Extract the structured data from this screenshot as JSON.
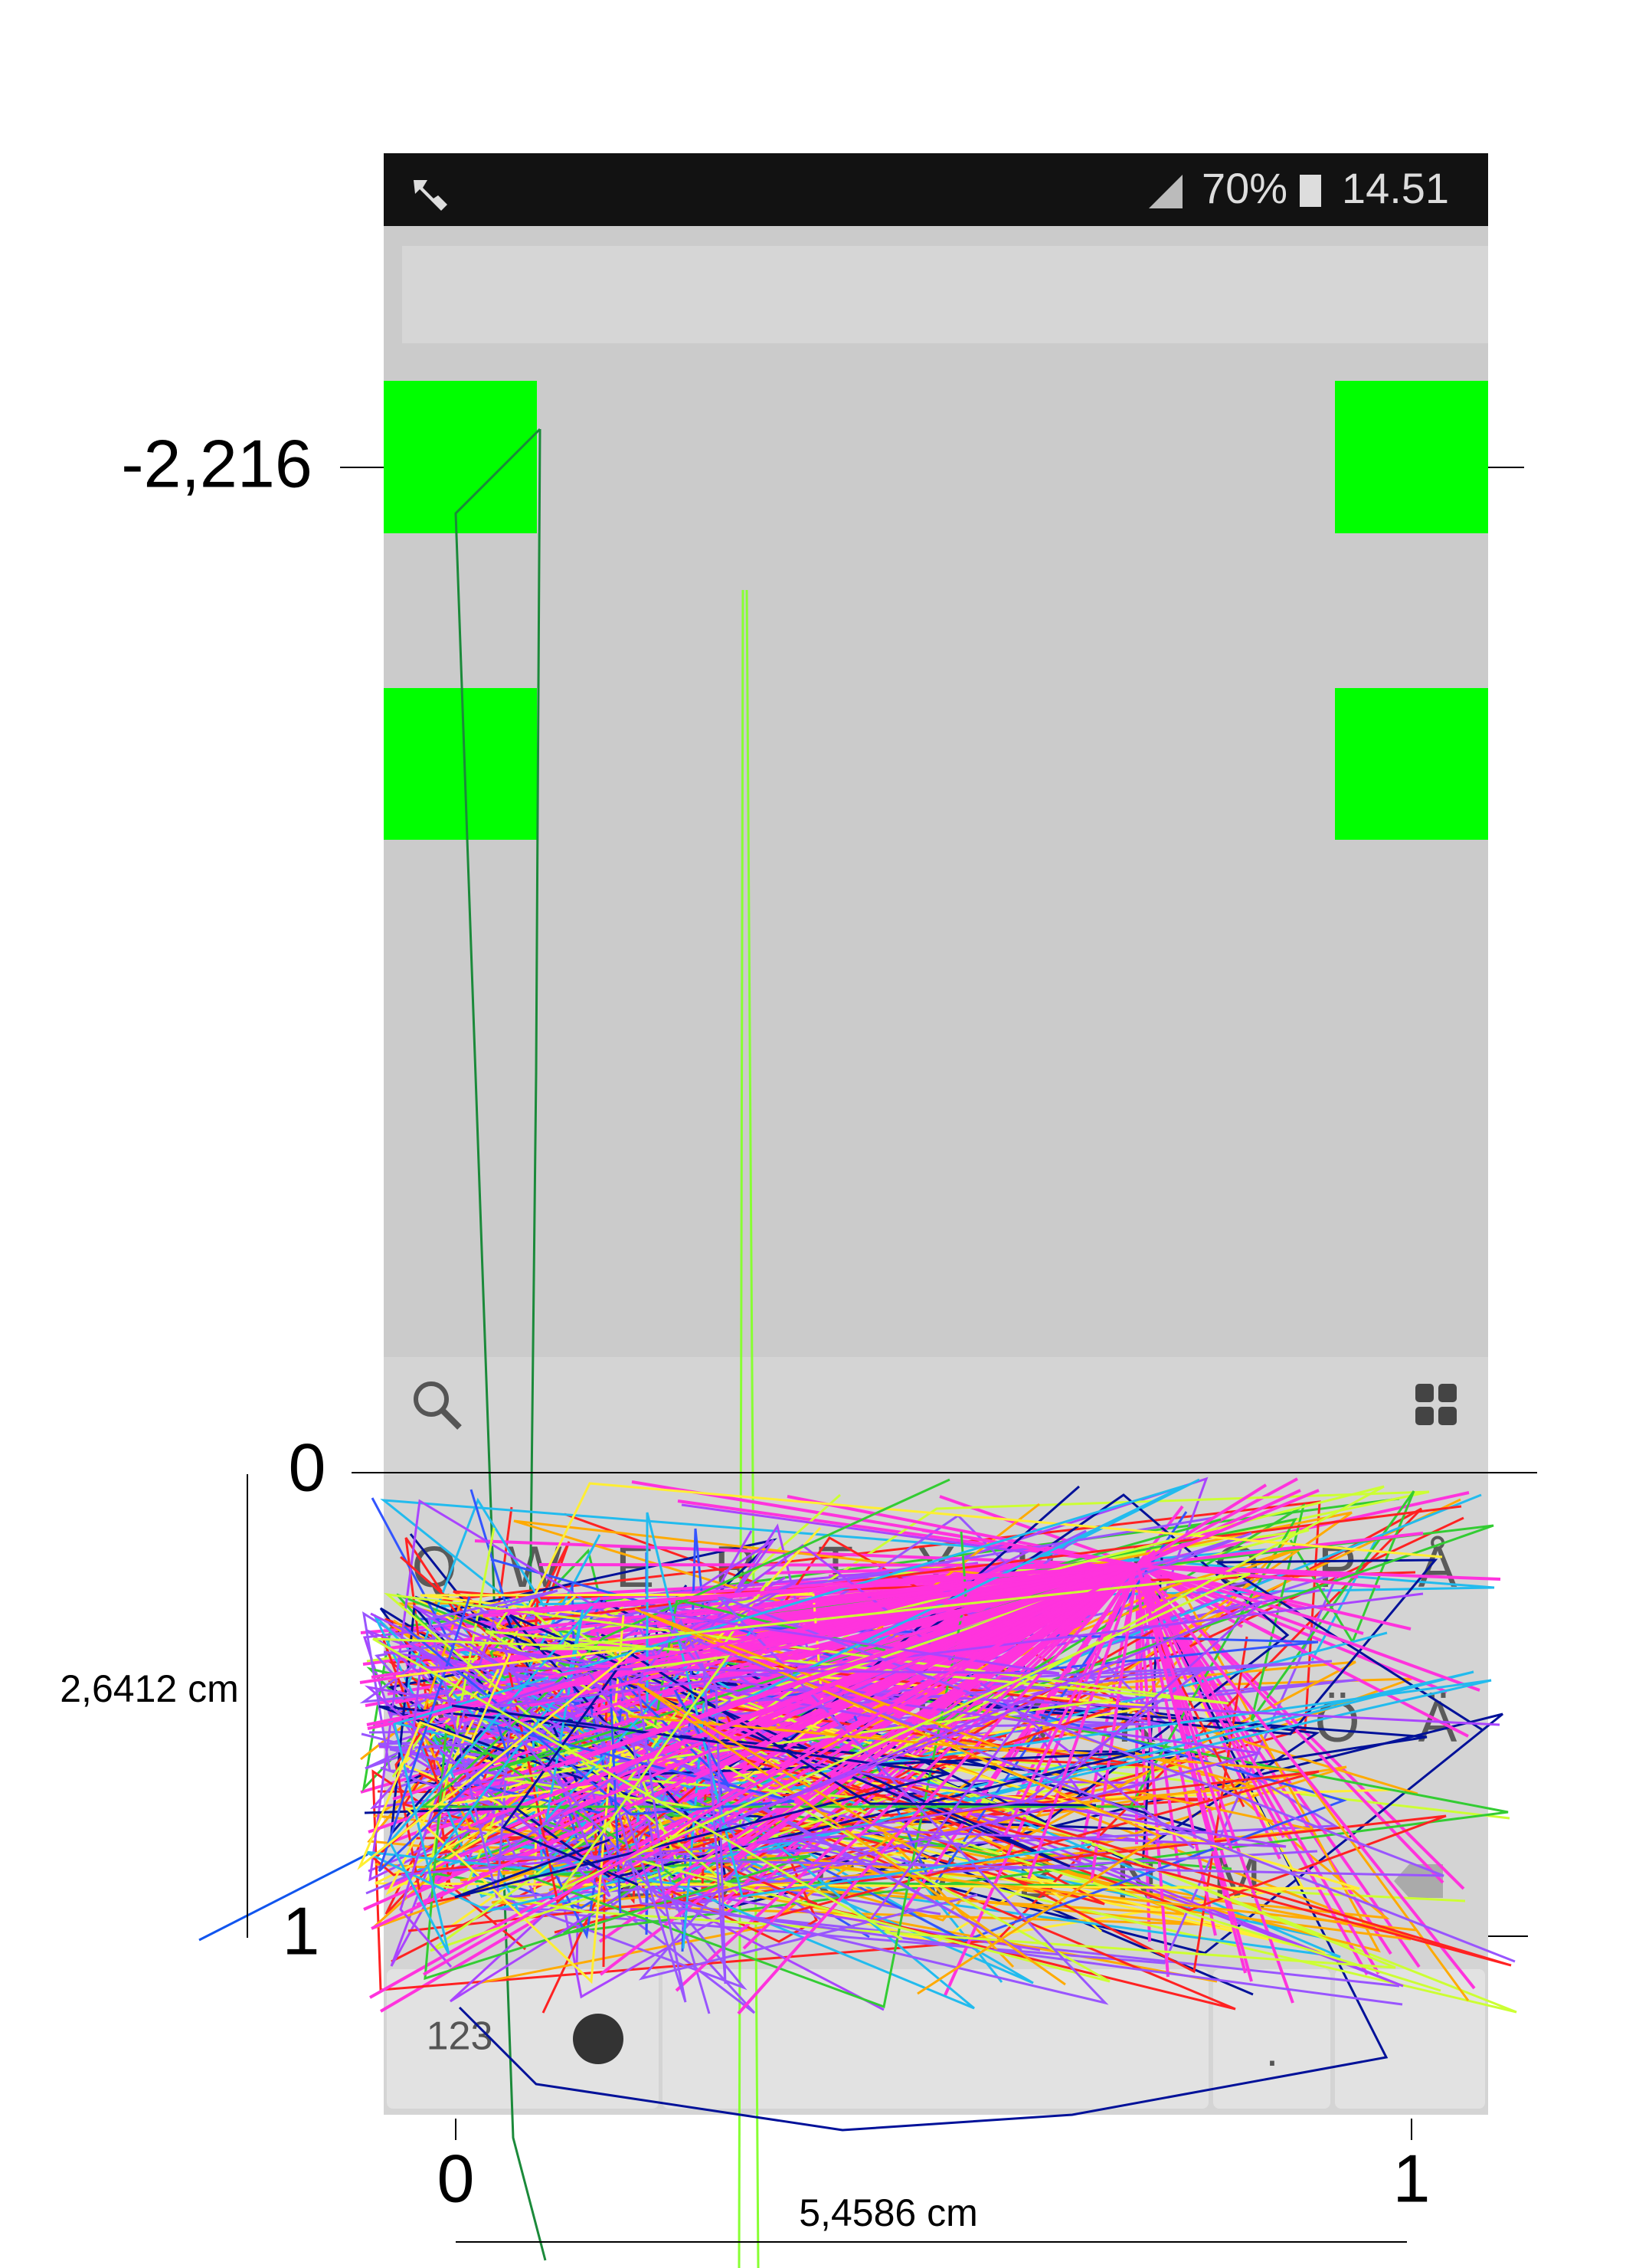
{
  "status_bar": {
    "battery": "70%",
    "time": "14.51"
  },
  "keyboard": {
    "rows": [
      [
        "Q",
        "W",
        "E",
        "R",
        "T",
        "Y",
        "U",
        "I",
        "O",
        "P",
        "Å"
      ],
      [
        "A",
        "S",
        "D",
        "F",
        "G",
        "H",
        "J",
        "K",
        "L",
        "Ö",
        "Ä"
      ],
      [
        "Z",
        "X",
        "C",
        "V",
        "B",
        "N",
        "M"
      ]
    ],
    "bottom": {
      "numbers": "123",
      "period": "."
    }
  },
  "axes": {
    "y_top": "-2,216",
    "y_zero": "0",
    "y_one": "1",
    "y_length": "2,6412 cm",
    "x_zero": "0",
    "x_one": "1",
    "x_length": "5,4586 cm"
  }
}
